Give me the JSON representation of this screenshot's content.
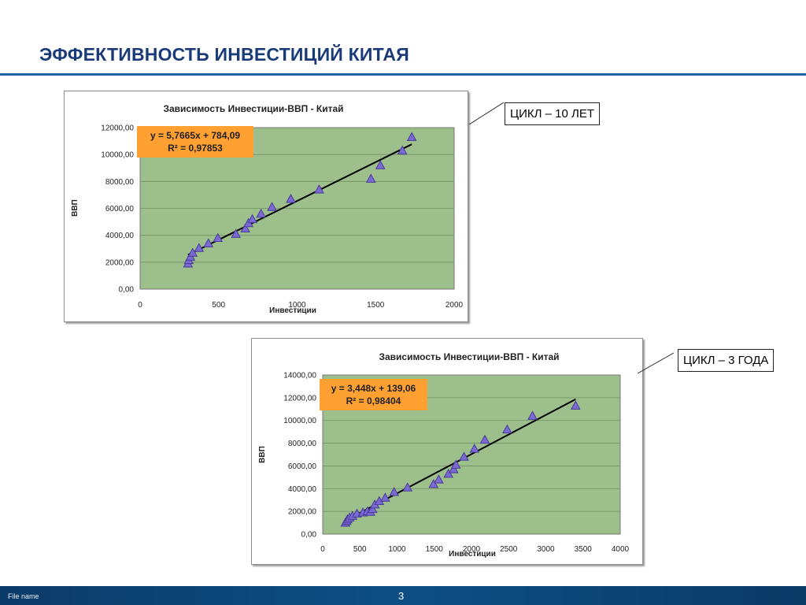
{
  "page": {
    "title": "ЭФФЕКТИВНОСТЬ ИНВЕСТИЦИЙ КИТАЯ",
    "footer_file": "File name",
    "page_number": "3"
  },
  "callouts": [
    {
      "text": "ЦИКЛ – 10 ЛЕТ"
    },
    {
      "text": "ЦИКЛ – 3 ГОДА"
    }
  ],
  "colors": {
    "plot_bg": "#9dbf8c",
    "marker": "#7b6ad1",
    "marker_stroke": "#4a3a9a",
    "eq_box": "#ffa033",
    "accent": "#1d63a6"
  },
  "chart_data": [
    {
      "type": "scatter",
      "title": "Зависимость Инвестиции-ВВП - Китай",
      "xlabel": "Инвестиции",
      "ylabel": "ВВП",
      "xlim": [
        0,
        2000
      ],
      "ylim": [
        0,
        12000
      ],
      "xticks": [
        0,
        500,
        1000,
        1500,
        2000
      ],
      "yticks": [
        0,
        2000,
        4000,
        6000,
        8000,
        10000,
        12000
      ],
      "ytick_labels": [
        "0,00",
        "2000,00",
        "4000,00",
        "6000,00",
        "8000,00",
        "10000,00",
        "12000,00"
      ],
      "grid": "horizontal",
      "trendline": {
        "slope": 5.7665,
        "intercept": 784.09,
        "x_range": [
          305,
          1730
        ]
      },
      "equation": [
        "y = 5,7665x + 784,09",
        "R² = 0,97853"
      ],
      "points": [
        {
          "x": 305,
          "y": 1900
        },
        {
          "x": 310,
          "y": 2150
        },
        {
          "x": 320,
          "y": 2400
        },
        {
          "x": 335,
          "y": 2700
        },
        {
          "x": 375,
          "y": 3050
        },
        {
          "x": 435,
          "y": 3400
        },
        {
          "x": 495,
          "y": 3800
        },
        {
          "x": 610,
          "y": 4100
        },
        {
          "x": 670,
          "y": 4500
        },
        {
          "x": 690,
          "y": 4900
        },
        {
          "x": 715,
          "y": 5200
        },
        {
          "x": 770,
          "y": 5600
        },
        {
          "x": 840,
          "y": 6100
        },
        {
          "x": 960,
          "y": 6700
        },
        {
          "x": 1140,
          "y": 7400
        },
        {
          "x": 1470,
          "y": 8200
        },
        {
          "x": 1530,
          "y": 9200
        },
        {
          "x": 1670,
          "y": 10300
        },
        {
          "x": 1730,
          "y": 11300
        }
      ]
    },
    {
      "type": "scatter",
      "title": "Зависимость Инвестиции-ВВП - Китай",
      "xlabel": "Инвестиции",
      "ylabel": "ВВП",
      "xlim": [
        0,
        4000
      ],
      "ylim": [
        0,
        14000
      ],
      "xticks": [
        0,
        500,
        1000,
        1500,
        2000,
        2500,
        3000,
        3500,
        4000
      ],
      "yticks": [
        0,
        2000,
        4000,
        6000,
        8000,
        10000,
        12000,
        14000
      ],
      "ytick_labels": [
        "0,00",
        "2000,00",
        "4000,00",
        "6000,00",
        "8000,00",
        "10000,00",
        "12000,00",
        "14000,00"
      ],
      "grid": "horizontal",
      "trendline": {
        "slope": 3.448,
        "intercept": 139.06,
        "x_range": [
          305,
          3400
        ]
      },
      "equation": [
        "y = 3,448x + 139,06",
        "R² = 0,98404"
      ],
      "points": [
        {
          "x": 305,
          "y": 1000
        },
        {
          "x": 320,
          "y": 1150
        },
        {
          "x": 335,
          "y": 1300
        },
        {
          "x": 360,
          "y": 1450
        },
        {
          "x": 400,
          "y": 1600
        },
        {
          "x": 460,
          "y": 1800
        },
        {
          "x": 540,
          "y": 1900
        },
        {
          "x": 600,
          "y": 2000
        },
        {
          "x": 640,
          "y": 1950
        },
        {
          "x": 670,
          "y": 2200
        },
        {
          "x": 700,
          "y": 2600
        },
        {
          "x": 760,
          "y": 2900
        },
        {
          "x": 840,
          "y": 3200
        },
        {
          "x": 960,
          "y": 3700
        },
        {
          "x": 1140,
          "y": 4100
        },
        {
          "x": 1490,
          "y": 4400
        },
        {
          "x": 1560,
          "y": 4800
        },
        {
          "x": 1690,
          "y": 5300
        },
        {
          "x": 1760,
          "y": 5700
        },
        {
          "x": 1790,
          "y": 6100
        },
        {
          "x": 1900,
          "y": 6800
        },
        {
          "x": 2040,
          "y": 7500
        },
        {
          "x": 2180,
          "y": 8300
        },
        {
          "x": 2480,
          "y": 9200
        },
        {
          "x": 2820,
          "y": 10400
        },
        {
          "x": 3400,
          "y": 11300
        }
      ]
    }
  ]
}
